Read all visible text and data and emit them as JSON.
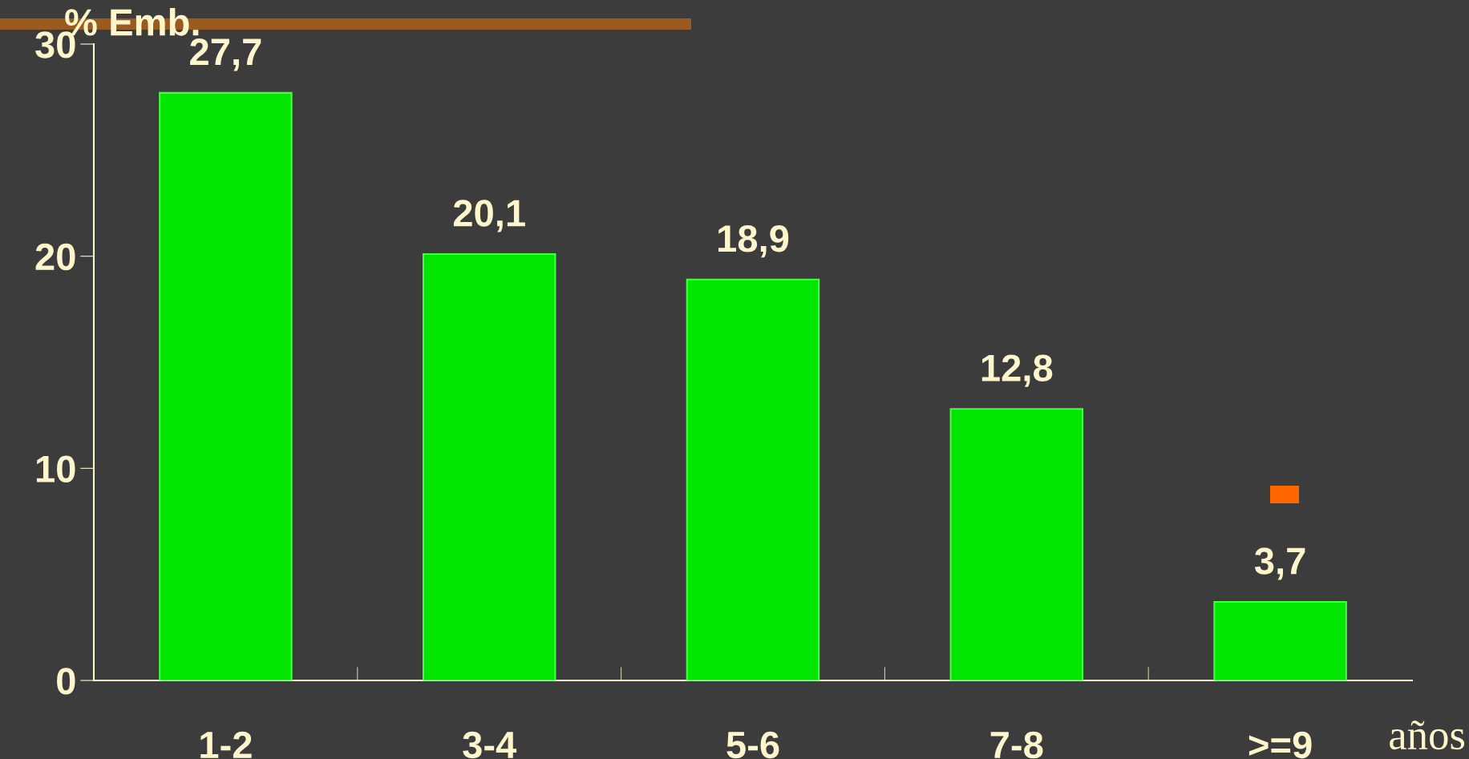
{
  "chart_data": {
    "type": "bar",
    "ylabel": "% Emb.",
    "xlabel": "años",
    "categories": [
      "1-2",
      "3-4",
      "5-6",
      "7-8",
      ">=9"
    ],
    "values": [
      27.7,
      20.1,
      18.9,
      12.8,
      3.7
    ],
    "value_labels": [
      "27,7",
      "20,1",
      "18,9",
      "12,8",
      "3,7"
    ],
    "color": "#00e600",
    "ylim": [
      0,
      30
    ],
    "yticks": [
      0,
      10,
      20,
      30
    ],
    "grid": false,
    "legend": false
  }
}
